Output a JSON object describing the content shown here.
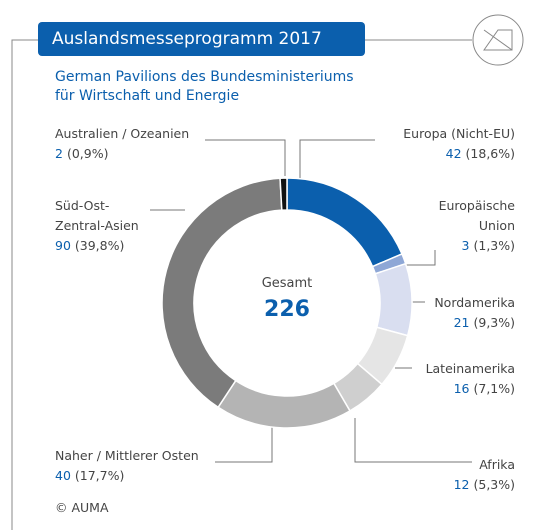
{
  "header": {
    "title": "Auslandsmesseprogramm 2017",
    "subtitle": "German Pavilions des Bundesministeriums\nfür Wirtschaft und Energie"
  },
  "chart_data": {
    "type": "donut",
    "categories": [
      "Europa (Nicht-EU)",
      "Europäische\nUnion",
      "Nordamerika",
      "Lateinamerika",
      "Afrika",
      "Naher / Mittlerer Osten",
      "Süd-Ost-\nZentral-Asien",
      "Australien / Ozeanien"
    ],
    "values": [
      42,
      3,
      21,
      16,
      12,
      40,
      90,
      2
    ],
    "percent_labels": [
      "(18,6%)",
      "(1,3%)",
      "(9,3%)",
      "(7,1%)",
      "(5,3%)",
      "(17,7%)",
      "(39,8%)",
      "(0,9%)"
    ],
    "colors": [
      "#0b5fad",
      "#8ea7d6",
      "#d9def0",
      "#e5e5e5",
      "#cfcfcf",
      "#b4b4b4",
      "#7b7b7b",
      "#111111"
    ],
    "total_label": "Gesamt",
    "total": 226
  },
  "footer": {
    "source": "© AUMA"
  }
}
